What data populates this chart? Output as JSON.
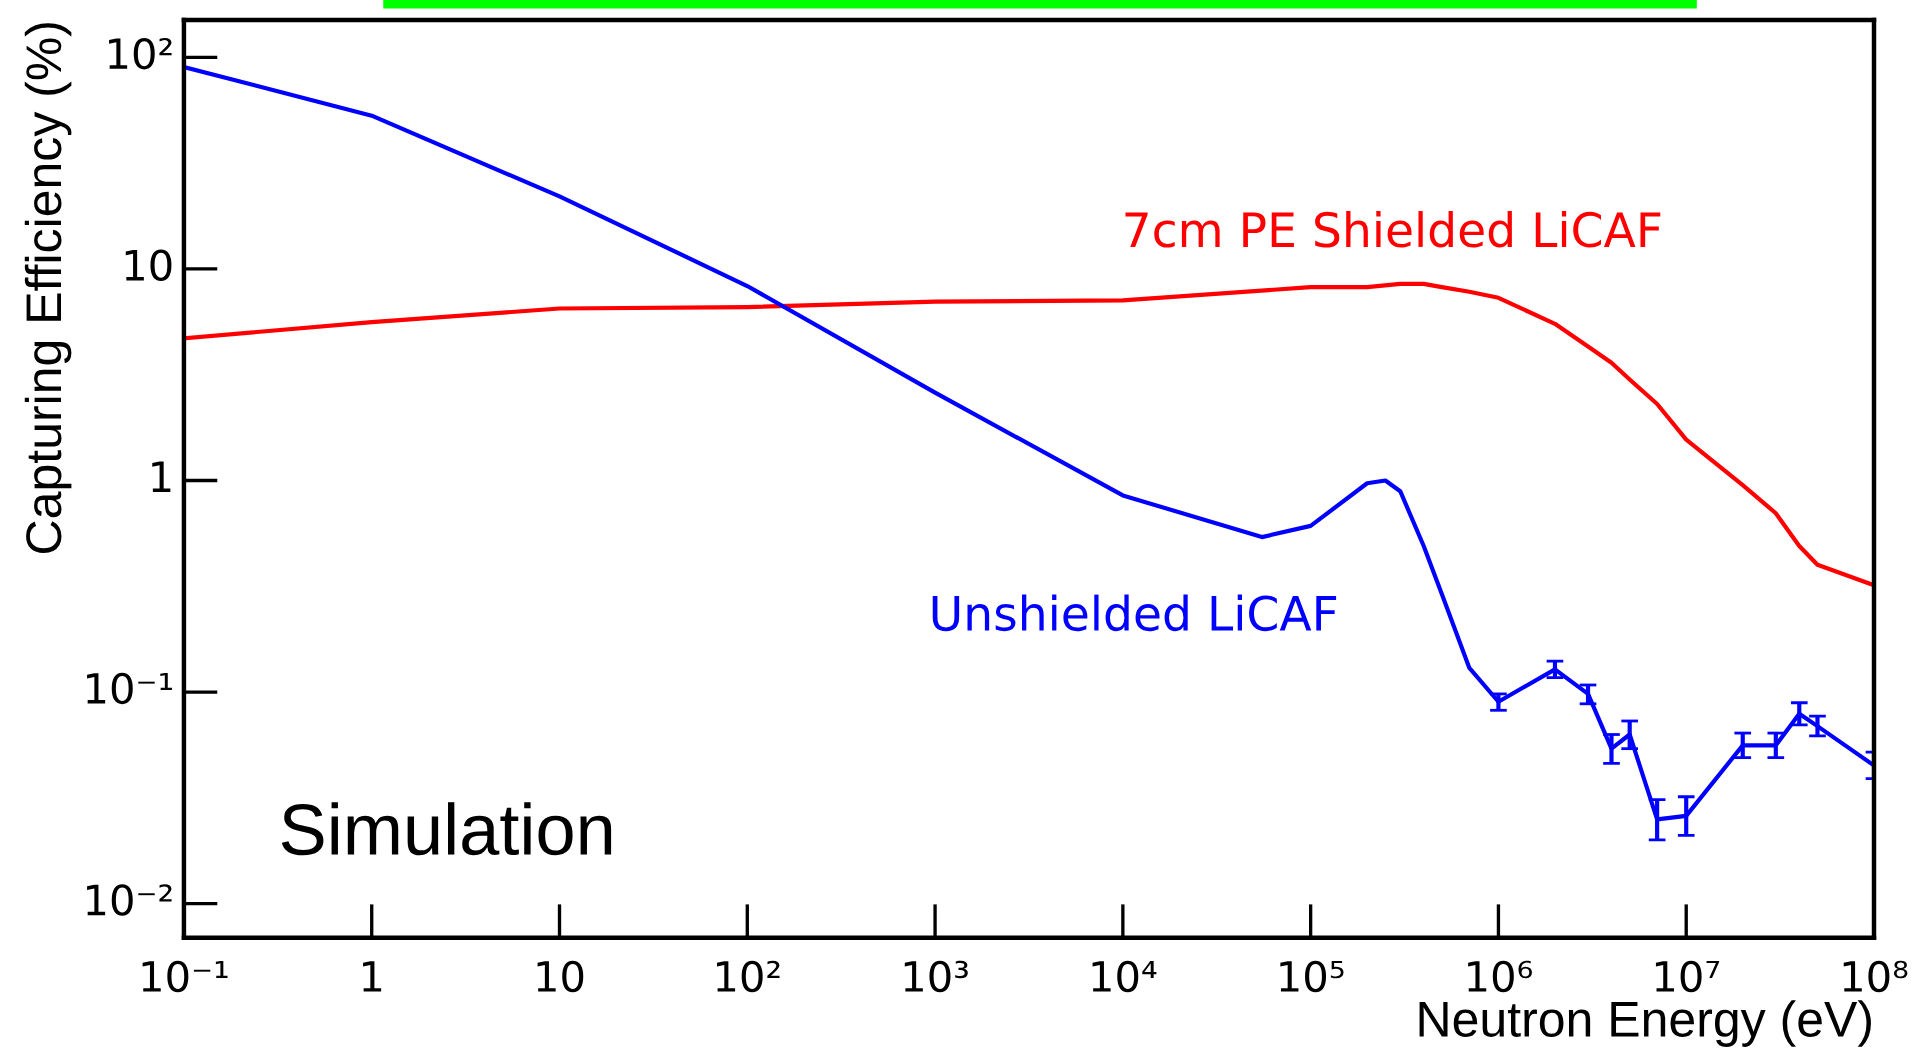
{
  "chart_data": {
    "type": "line",
    "xlabel": "Neutron Energy (eV)",
    "ylabel": "Capturing Efficiency (%)",
    "log": "xy",
    "grid": false,
    "legend": false,
    "marker": "none",
    "line_style": "solid",
    "xlim": [
      0.1,
      100000000
    ],
    "ylim": [
      0.0069,
      150
    ],
    "xticks": [
      {
        "value": 0.1,
        "label": "10⁻¹"
      },
      1,
      10,
      {
        "value": 100,
        "label": "10²"
      },
      {
        "value": 1000,
        "label": "10³"
      },
      {
        "value": 10000,
        "label": "10⁴"
      },
      {
        "value": 100000,
        "label": "10⁵"
      },
      {
        "value": 1000000,
        "label": "10⁶"
      },
      {
        "value": 10000000,
        "label": "10⁷"
      },
      {
        "value": 100000000,
        "label": "10⁸"
      }
    ],
    "yticks": [
      {
        "value": 0.01,
        "label": "10⁻²"
      },
      {
        "value": 0.1,
        "label": "10⁻¹"
      },
      1,
      10,
      {
        "value": 100,
        "label": "10²"
      }
    ],
    "annotations": [
      "Simulation"
    ],
    "series": [
      {
        "name": "7cm PE Shielded LiCAF",
        "color": "#ff0000",
        "x": [
          0.1,
          1,
          10,
          100,
          1000,
          10000,
          100000,
          200000,
          300000,
          400000,
          500000,
          700000,
          1000000,
          2000000,
          3000000,
          4000000,
          5000000,
          7000000,
          10000000,
          20000000,
          30000000,
          40000000,
          50000000,
          100000000
        ],
        "values": [
          4.7,
          5.6,
          6.5,
          6.6,
          7.0,
          7.1,
          8.2,
          8.2,
          8.5,
          8.5,
          8.2,
          7.8,
          7.3,
          5.5,
          4.3,
          3.6,
          3.0,
          2.3,
          1.56,
          0.95,
          0.7,
          0.49,
          0.4,
          0.32
        ]
      },
      {
        "name": "Unshielded LiCAF",
        "color": "#0000ff",
        "x": [
          0.1,
          1,
          10,
          100,
          1000,
          10000,
          55000,
          100000,
          200000,
          250000,
          300000,
          400000,
          500000,
          700000,
          1000000,
          2000000,
          3000000,
          4000000,
          5000000,
          7000000,
          10000000,
          20000000,
          30000000,
          40000000,
          50000000,
          100000000
        ],
        "values": [
          90,
          53,
          22,
          8.3,
          2.6,
          0.85,
          0.54,
          0.61,
          0.97,
          1.0,
          0.89,
          0.49,
          0.29,
          0.13,
          0.09,
          0.128,
          0.098,
          0.054,
          0.063,
          0.025,
          0.026,
          0.056,
          0.056,
          0.079,
          0.069,
          0.045
        ],
        "errors": [
          null,
          null,
          null,
          null,
          null,
          null,
          null,
          null,
          null,
          null,
          null,
          null,
          null,
          null,
          [
            0.082,
            0.098
          ],
          [
            0.117,
            0.14
          ],
          [
            0.088,
            0.108
          ],
          [
            0.046,
            0.063
          ],
          [
            0.054,
            0.073
          ],
          [
            0.02,
            0.031
          ],
          [
            0.021,
            0.032
          ],
          [
            0.049,
            0.064
          ],
          [
            0.049,
            0.064
          ],
          [
            0.07,
            0.089
          ],
          [
            0.062,
            0.077
          ],
          [
            0.039,
            0.052
          ]
        ]
      }
    ]
  }
}
